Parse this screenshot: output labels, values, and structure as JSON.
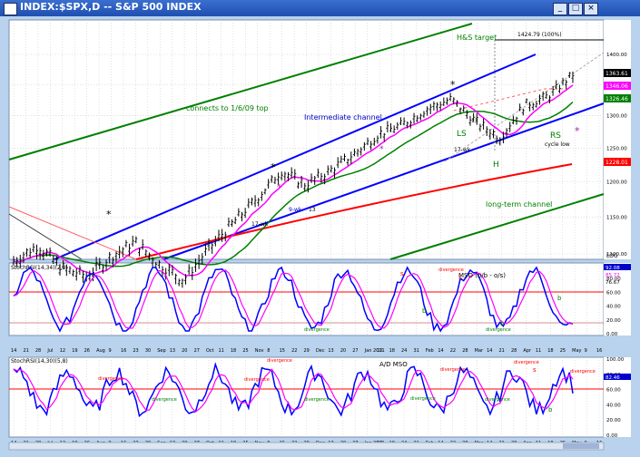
{
  "window": {
    "title": "INDEX:$SPX,D -- S&P 500 INDEX",
    "buttons": [
      "_",
      "□",
      "×"
    ]
  },
  "chart_data": [
    {
      "type": "line",
      "title": "INDEX:$SPX,D -- S&P 500 INDEX",
      "log_scale": true,
      "log_label": "LOG",
      "ylim": [
        1100,
        1450
      ],
      "ticks": [
        "1100.00",
        "1150.00",
        "1200.00",
        "1250.00",
        "1300.00",
        "1350.00",
        "1400.00"
      ],
      "x": [
        "Jun 14",
        "Jun 21",
        "Jul",
        "Jul 12",
        "Jul 26",
        "Aug",
        "Aug 16",
        "Sep",
        "Sep 13",
        "Oct",
        "Oct 18",
        "Nov",
        "Nov 15",
        "Dec",
        "Dec 13",
        "Jan 2011",
        "Jan 18",
        "Feb",
        "Feb 22",
        "Mar",
        "Mar 21",
        "Apr",
        "Apr 18",
        "May"
      ],
      "series": [
        {
          "values": [
            1090,
            1110,
            1080,
            1070,
            1095,
            1115,
            1085,
            1065,
            1105,
            1140,
            1175,
            1215,
            1195,
            1215,
            1240,
            1270,
            1285,
            1310,
            1325,
            1290,
            1265,
            1315,
            1330,
            1365
          ]
        }
      ],
      "price_labels": [
        {
          "value": "1363.61",
          "color": "#000000"
        },
        {
          "value": "1346.06",
          "color": "#ff00ff"
        },
        {
          "value": "1326.46",
          "color": "#008000"
        },
        {
          "value": "1228.01",
          "color": "#ff0000"
        },
        {
          "value": "1424.79 (100%)",
          "color": "#000000"
        }
      ],
      "annotations": [
        "connects to 1/6/09 top",
        "Intermediate channel",
        "H&S target",
        "long-term channel",
        "LS",
        "H",
        "RS",
        "cycle low",
        "17-wk",
        "9-wk",
        "13",
        "13",
        "17-wk",
        "*",
        "*",
        "*",
        "*",
        "*",
        "*"
      ],
      "grid": true
    },
    {
      "type": "line",
      "title": "StochRSI(14,34)(2,8)",
      "ylim": [
        0,
        100
      ],
      "ticks": [
        "0.00",
        "20.00",
        "40.00",
        "60.00",
        "80.00"
      ],
      "values_label": [
        "92.08",
        "85.72",
        "76.67"
      ],
      "annotations": [
        "MSO (o/b - o/s)",
        "divergence",
        "divergence",
        "divergence",
        "s",
        "s",
        "b",
        "b",
        "b"
      ]
    },
    {
      "type": "line",
      "title": "StochRSI(14,30)(5,8)",
      "ylim": [
        0,
        100
      ],
      "ticks": [
        "0.00",
        "20.00",
        "40.00",
        "60.00",
        "80.00",
        "100.00"
      ],
      "values_label": [
        "82.46"
      ],
      "annotations": [
        "A/D MSO",
        "divergence",
        "divergence",
        "divergence",
        "divergence",
        "divergence",
        "divergence",
        "divergence",
        "divergence",
        "divergence",
        "divergence",
        "s",
        "b"
      ]
    }
  ],
  "x_axis_ticks": [
    "14",
    "21",
    "28",
    "Jul",
    "12",
    "19",
    "26",
    "Aug",
    "9",
    "16",
    "23",
    "30",
    "Sep",
    "13",
    "20",
    "27",
    "Oct",
    "11",
    "18",
    "25",
    "Nov",
    "8",
    "15",
    "22",
    "29",
    "Dec",
    "13",
    "20",
    "27",
    "Jan 2011",
    "10",
    "18",
    "24",
    "31",
    "Feb",
    "14",
    "22",
    "28",
    "Mar",
    "14",
    "21",
    "28",
    "Apr",
    "11",
    "18",
    "25",
    "May",
    "9",
    "16"
  ]
}
